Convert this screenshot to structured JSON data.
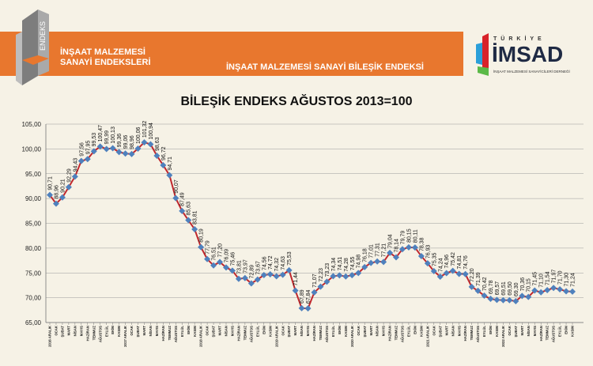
{
  "header": {
    "logo_text": "ENDEKS",
    "brand_line1": "İNŞAAT MALZEMESİ",
    "brand_line2": "SANAYİ ENDEKSLERİ",
    "band_title": "İNŞAAT MALZEMESİ SANAYİ BİLEŞİK ENDEKSİ",
    "imsad_logo_text": "TÜRKİYE İMSAD",
    "imsad_logo_sub": "İNŞAAT MALZEMESİ SANAYİCİLERİ DERNEĞİ",
    "colors": {
      "band": "#e8772e",
      "background": "#f6f2e6"
    }
  },
  "chart_data": {
    "type": "line",
    "title": "BİLEŞİK ENDEKS AĞUSTOS 2013=100",
    "xlabel": "",
    "ylabel": "",
    "ylim": [
      65,
      105
    ],
    "yticks": [
      "65,00",
      "70,00",
      "75,00",
      "80,00",
      "85,00",
      "90,00",
      "95,00",
      "100,00",
      "105,00"
    ],
    "grid": true,
    "line_color": "#c0282d",
    "marker_color": "#4f81bd",
    "marker": "diamond",
    "categories": [
      "2016 ARALIK",
      "OCAK",
      "ŞUBAT",
      "MART",
      "NİSAN",
      "MAYIS",
      "HAZİRAN",
      "TEMMUZ",
      "AĞUSTOS",
      "EYLÜL",
      "EKİM",
      "KASIM",
      "2017 ARALIK",
      "OCAK",
      "ŞUBAT",
      "MART",
      "NİSAN",
      "MAYIS",
      "HAZİRAN",
      "TEMMUZ",
      "AĞUSTOS",
      "EYLÜL",
      "EKİM",
      "KASIM",
      "2018 ARALIK",
      "OCAK",
      "ŞUBAT",
      "MART",
      "NİSAN",
      "MAYIS",
      "HAZİRAN",
      "TEMMUZ",
      "AĞUSTOS",
      "EYLÜL",
      "EKİM",
      "KASIM",
      "2019 ARALIK",
      "OCAK",
      "ŞUBAT",
      "MART",
      "NİSAN",
      "MAYIS",
      "HAZİRAN",
      "TEMMUZ",
      "AĞUSTOS",
      "EYLÜL",
      "EKİM",
      "KASIM",
      "2020 ARALIK",
      "OCAK",
      "ŞUBAT",
      "MART",
      "NİSAN",
      "MAYIS",
      "HAZİRAN",
      "TEMMUZ",
      "AĞUSTOS",
      "EYLÜL",
      "EKİM",
      "KASIM",
      "2021 ARALIK",
      "OCAK",
      "ŞUBAT",
      "MART",
      "NİSAN",
      "MAYIS",
      "HAZİRAN",
      "TEMMUZ",
      "AĞUSTOS",
      "EYLÜL",
      "EKİM",
      "KASIM",
      "2022 ARALIK",
      "OCAK",
      "ŞUBAT",
      "MART",
      "NİSAN",
      "MAYIS",
      "HAZİRAN",
      "TEMMUZ",
      "AĞUSTOS",
      "EYLÜL",
      "EKİM",
      "KASIM"
    ],
    "values": [
      90.71,
      88.96,
      90.21,
      92.29,
      94.43,
      97.56,
      97.95,
      99.53,
      100.47,
      99.99,
      100.13,
      99.36,
      99.06,
      98.96,
      100.06,
      101.32,
      100.94,
      98.63,
      96.72,
      94.71,
      90.07,
      87.49,
      85.63,
      83.81,
      80.19,
      77.79,
      76.51,
      77.2,
      76.09,
      75.46,
      73.81,
      73.97,
      72.89,
      73.67,
      74.56,
      74.72,
      74.32,
      74.63,
      75.53,
      71.44,
      67.89,
      67.84,
      71.07,
      72.23,
      73.23,
      74.34,
      74.51,
      74.28,
      74.55,
      74.98,
      76.18,
      77.01,
      77.31,
      77.21,
      79.04,
      78.14,
      79.79,
      80.15,
      80.11,
      78.38,
      76.93,
      75.35,
      74.24,
      74.96,
      75.42,
      74.81,
      74.76,
      72.2,
      71.39,
      70.42,
      69.78,
      69.57,
      69.51,
      69.5,
      69.3,
      70.36,
      70.15,
      71.45,
      71.1,
      71.54,
      71.97,
      71.7,
      71.3,
      71.24
    ]
  }
}
